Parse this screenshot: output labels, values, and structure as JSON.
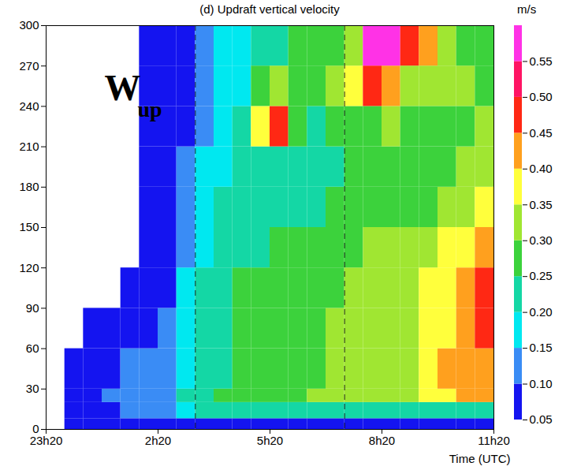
{
  "chart_data": {
    "type": "heatmap",
    "title": "(d) Updraft vertical velocity",
    "x_label": "Time (UTC)",
    "xlim": [
      0,
      12
    ],
    "xticks": [
      {
        "value": 0,
        "label": "23h20"
      },
      {
        "value": 3,
        "label": "2h20"
      },
      {
        "value": 6,
        "label": "5h20"
      },
      {
        "value": 9,
        "label": "8h20"
      },
      {
        "value": 12,
        "label": "11h20"
      }
    ],
    "ylim": [
      0,
      300
    ],
    "yticks": [
      0,
      30,
      60,
      90,
      120,
      150,
      180,
      210,
      240,
      270,
      300
    ],
    "grid": false,
    "annotations": [
      {
        "text": "W",
        "subscript": "up"
      }
    ],
    "reference_lines": {
      "x": [
        4,
        8
      ],
      "line_style": "dashed"
    },
    "x_edges": [
      0,
      0.5,
      1,
      1.5,
      2,
      2.5,
      3,
      3.5,
      4,
      4.5,
      5,
      5.5,
      6,
      6.5,
      7,
      7.5,
      8,
      8.5,
      9,
      9.5,
      10,
      10.5,
      11,
      11.5,
      12
    ],
    "y_edges": [
      0,
      8,
      20,
      30,
      60,
      90,
      120,
      150,
      180,
      210,
      240,
      270,
      300
    ],
    "z": [
      [
        null,
        0.07,
        0.07,
        0.07,
        0.07,
        0.07,
        0.07,
        0.07,
        0.07,
        0.07,
        0.07,
        0.07,
        0.07,
        0.07,
        0.07,
        0.07,
        0.07,
        0.07,
        0.07,
        0.07,
        0.07,
        0.07,
        0.07,
        0.07
      ],
      [
        null,
        0.07,
        0.08,
        0.09,
        0.11,
        0.12,
        0.13,
        0.17,
        0.2,
        0.21,
        0.21,
        0.21,
        0.22,
        0.22,
        0.22,
        0.22,
        0.22,
        0.22,
        0.22,
        0.22,
        0.23,
        0.23,
        0.24,
        0.24
      ],
      [
        null,
        0.07,
        0.08,
        0.1,
        0.12,
        0.12,
        0.13,
        0.2,
        0.23,
        0.26,
        0.27,
        0.27,
        0.28,
        0.28,
        0.3,
        0.3,
        0.31,
        0.32,
        0.33,
        0.33,
        0.36,
        0.38,
        0.41,
        0.42
      ],
      [
        null,
        0.06,
        0.07,
        0.08,
        0.1,
        0.11,
        0.12,
        0.18,
        0.22,
        0.24,
        0.26,
        0.27,
        0.27,
        0.28,
        0.29,
        0.3,
        0.31,
        0.32,
        0.33,
        0.34,
        0.37,
        0.4,
        0.42,
        0.44
      ],
      [
        null,
        null,
        0.06,
        0.07,
        0.08,
        0.09,
        0.11,
        0.16,
        0.21,
        0.24,
        0.26,
        0.26,
        0.27,
        0.28,
        0.29,
        0.3,
        0.31,
        0.32,
        0.32,
        0.33,
        0.36,
        0.38,
        0.43,
        0.46
      ],
      [
        null,
        null,
        null,
        null,
        0.06,
        0.07,
        0.09,
        0.15,
        0.2,
        0.23,
        0.25,
        0.25,
        0.26,
        0.27,
        0.28,
        0.29,
        0.3,
        0.31,
        0.31,
        0.32,
        0.35,
        0.37,
        0.42,
        0.46
      ],
      [
        null,
        null,
        null,
        null,
        null,
        0.06,
        0.08,
        0.14,
        0.19,
        0.22,
        0.24,
        0.24,
        0.25,
        0.26,
        0.27,
        0.28,
        0.29,
        0.3,
        0.3,
        0.31,
        0.33,
        0.35,
        0.39,
        0.43
      ],
      [
        null,
        null,
        null,
        null,
        null,
        0.06,
        0.07,
        0.12,
        0.17,
        0.2,
        0.22,
        0.23,
        0.23,
        0.22,
        0.24,
        0.25,
        0.26,
        0.27,
        0.27,
        0.28,
        0.29,
        0.31,
        0.33,
        0.35
      ],
      [
        null,
        null,
        null,
        null,
        null,
        0.06,
        0.07,
        0.1,
        0.15,
        0.18,
        0.2,
        0.22,
        0.24,
        0.2,
        0.22,
        0.24,
        0.25,
        0.26,
        0.26,
        0.27,
        0.28,
        0.29,
        0.3,
        0.31
      ],
      [
        null,
        null,
        null,
        null,
        null,
        0.06,
        0.06,
        0.09,
        0.14,
        0.17,
        0.23,
        0.38,
        0.46,
        0.26,
        0.24,
        0.27,
        0.28,
        0.29,
        0.3,
        0.29,
        0.29,
        0.28,
        0.29,
        0.3
      ],
      [
        null,
        null,
        null,
        null,
        null,
        0.06,
        0.06,
        0.08,
        0.13,
        0.16,
        0.19,
        0.28,
        0.33,
        0.28,
        0.27,
        0.31,
        0.36,
        0.46,
        0.44,
        0.33,
        0.32,
        0.3,
        0.3,
        0.29
      ],
      [
        null,
        null,
        null,
        null,
        null,
        0.06,
        0.06,
        0.07,
        0.12,
        0.15,
        0.17,
        0.2,
        0.22,
        0.25,
        0.26,
        0.29,
        0.33,
        0.57,
        0.58,
        0.45,
        0.42,
        0.3,
        0.29,
        0.28
      ]
    ],
    "colorbar": {
      "label": "m/s",
      "range": [
        0.05,
        0.6
      ],
      "ticks": [
        0.05,
        {
          "value": 0.1,
          "label": "0.10"
        },
        0.15,
        {
          "value": 0.2,
          "label": "0.20"
        },
        0.25,
        {
          "value": 0.3,
          "label": "0.30"
        },
        0.35,
        {
          "value": 0.4,
          "label": "0.40"
        },
        0.45,
        {
          "value": 0.5,
          "label": "0.50"
        },
        0.55
      ],
      "colors": [
        "#1414f0",
        "#3a8cf5",
        "#00e8f0",
        "#14d7a5",
        "#3cd23c",
        "#a0e632",
        "#ffff3c",
        "#ffa01e",
        "#ff2814",
        "#ff1464",
        "#ff32e6"
      ]
    }
  }
}
